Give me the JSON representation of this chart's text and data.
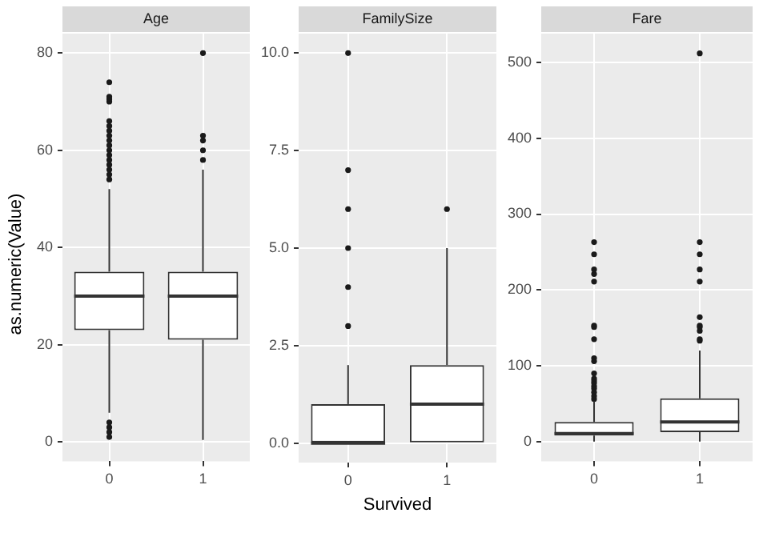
{
  "chart_data": [
    {
      "type": "box",
      "title": "Age",
      "ylabel": "as.numeric(Value)",
      "categories": [
        "0",
        "1"
      ],
      "ylim": [
        -4,
        84
      ],
      "yticks": [
        0,
        20,
        40,
        60,
        80
      ],
      "grid": true,
      "boxes": [
        {
          "low": 6,
          "q1": 23,
          "median": 30,
          "q3": 35,
          "high": 52,
          "outliers": [
            1,
            2,
            3,
            4,
            54,
            55,
            56,
            57,
            58,
            59,
            60,
            61,
            62,
            63,
            64,
            65,
            66,
            70,
            70.5,
            71,
            74
          ]
        },
        {
          "low": 0.4,
          "q1": 21,
          "median": 30,
          "q3": 35,
          "high": 56,
          "outliers": [
            58,
            60,
            62,
            63,
            80
          ]
        }
      ]
    },
    {
      "type": "box",
      "title": "FamilySize",
      "xlabel": "Survived",
      "categories": [
        "0",
        "1"
      ],
      "ylim": [
        -0.5,
        10.5
      ],
      "yticks": [
        {
          "value": 0,
          "label": "0.0"
        },
        {
          "value": 2.5,
          "label": "2.5"
        },
        {
          "value": 5,
          "label": "5.0"
        },
        {
          "value": 7.5,
          "label": "7.5"
        },
        {
          "value": 10,
          "label": "10.0"
        }
      ],
      "grid": true,
      "boxes": [
        {
          "low": 0,
          "q1": 0,
          "median": 0,
          "q3": 1,
          "high": 2,
          "outliers": [
            3,
            4,
            5,
            6,
            7,
            10
          ]
        },
        {
          "low": 0,
          "q1": 0,
          "median": 1,
          "q3": 2,
          "high": 5,
          "outliers": [
            6
          ]
        }
      ]
    },
    {
      "type": "box",
      "title": "Fare",
      "categories": [
        "0",
        "1"
      ],
      "ylim": [
        -26,
        538
      ],
      "yticks": [
        0,
        100,
        200,
        300,
        400,
        500
      ],
      "grid": true,
      "boxes": [
        {
          "low": 0,
          "q1": 7.9,
          "median": 10.5,
          "q3": 26,
          "high": 53,
          "outliers": [
            56,
            60,
            65,
            70,
            73,
            77,
            80,
            83,
            90,
            106,
            110,
            135,
            151,
            153,
            211,
            221,
            227,
            247,
            263
          ]
        },
        {
          "low": 0,
          "q1": 12.5,
          "median": 26,
          "q3": 57,
          "high": 120,
          "outliers": [
            133,
            135,
            146,
            151,
            153,
            164,
            211,
            227,
            247,
            263,
            512
          ]
        }
      ]
    }
  ]
}
